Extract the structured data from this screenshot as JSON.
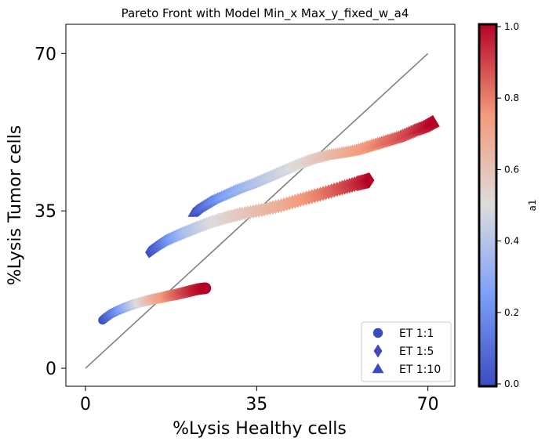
{
  "chart_data": {
    "type": "scatter",
    "title": "Pareto Front with Model Min_x Max_y_fixed_w_a4",
    "xlabel": "%Lysis Healthy cells",
    "ylabel": "%Lysis Tumor cells",
    "xlim": [
      -4,
      75.5
    ],
    "ylim": [
      -4,
      76.5
    ],
    "xticks": [
      0,
      35,
      70
    ],
    "yticks": [
      0,
      35,
      70
    ],
    "reference_line": {
      "x": [
        0,
        70
      ],
      "y": [
        0,
        70
      ],
      "color": "#808080"
    },
    "colorbar": {
      "label": "a1",
      "range": [
        0,
        1
      ],
      "ticks": [
        0.0,
        0.2,
        0.4,
        0.6,
        0.8,
        1.0
      ],
      "tick_labels": [
        "0.0",
        "0.2",
        "0.4",
        "0.6",
        "0.8",
        "1.0"
      ],
      "colormap": "coolwarm"
    },
    "legend": {
      "position": "lower-right"
    },
    "series": [
      {
        "name": "ET 1:1",
        "marker": "circle",
        "points": [
          {
            "x": 3.5,
            "y": 10.7,
            "c": 0.0
          },
          {
            "x": 4.3,
            "y": 11.4,
            "c": 0.06
          },
          {
            "x": 5.2,
            "y": 12.1,
            "c": 0.12
          },
          {
            "x": 6.5,
            "y": 12.8,
            "c": 0.2
          },
          {
            "x": 8.0,
            "y": 13.5,
            "c": 0.3
          },
          {
            "x": 9.5,
            "y": 14.1,
            "c": 0.4
          },
          {
            "x": 11.0,
            "y": 14.6,
            "c": 0.5
          },
          {
            "x": 12.5,
            "y": 15.0,
            "c": 0.58
          },
          {
            "x": 14.0,
            "y": 15.4,
            "c": 0.66
          },
          {
            "x": 15.5,
            "y": 15.7,
            "c": 0.72
          },
          {
            "x": 17.0,
            "y": 16.1,
            "c": 0.78
          },
          {
            "x": 18.5,
            "y": 16.4,
            "c": 0.83
          },
          {
            "x": 20.0,
            "y": 16.8,
            "c": 0.88
          },
          {
            "x": 21.5,
            "y": 17.2,
            "c": 0.93
          },
          {
            "x": 23.0,
            "y": 17.6,
            "c": 0.97
          },
          {
            "x": 24.5,
            "y": 17.8,
            "c": 1.0
          }
        ]
      },
      {
        "name": "ET 1:5",
        "marker": "diamond",
        "points": [
          {
            "x": 13.0,
            "y": 25.8,
            "c": 0.0
          },
          {
            "x": 14.0,
            "y": 26.6,
            "c": 0.06
          },
          {
            "x": 15.2,
            "y": 27.5,
            "c": 0.12
          },
          {
            "x": 16.5,
            "y": 28.4,
            "c": 0.2
          },
          {
            "x": 18.5,
            "y": 29.4,
            "c": 0.3
          },
          {
            "x": 20.5,
            "y": 30.3,
            "c": 0.38
          },
          {
            "x": 23.0,
            "y": 31.4,
            "c": 0.44
          },
          {
            "x": 26.0,
            "y": 32.6,
            "c": 0.5
          },
          {
            "x": 29.0,
            "y": 33.6,
            "c": 0.54
          },
          {
            "x": 32.0,
            "y": 34.4,
            "c": 0.58
          },
          {
            "x": 36.0,
            "y": 35.2,
            "c": 0.63
          },
          {
            "x": 40.0,
            "y": 36.2,
            "c": 0.68
          },
          {
            "x": 44.0,
            "y": 37.5,
            "c": 0.74
          },
          {
            "x": 48.0,
            "y": 38.7,
            "c": 0.8
          },
          {
            "x": 52.0,
            "y": 40.0,
            "c": 0.87
          },
          {
            "x": 55.5,
            "y": 41.1,
            "c": 0.94
          },
          {
            "x": 57.0,
            "y": 41.5,
            "c": 0.97
          },
          {
            "x": 58.0,
            "y": 41.8,
            "c": 1.0
          }
        ]
      },
      {
        "name": "ET 1:10",
        "marker": "triangle",
        "points": [
          {
            "x": 22.0,
            "y": 34.5,
            "c": 0.0
          },
          {
            "x": 23.0,
            "y": 35.4,
            "c": 0.06
          },
          {
            "x": 24.5,
            "y": 36.4,
            "c": 0.12
          },
          {
            "x": 26.0,
            "y": 37.4,
            "c": 0.18
          },
          {
            "x": 28.5,
            "y": 38.6,
            "c": 0.26
          },
          {
            "x": 31.0,
            "y": 39.8,
            "c": 0.32
          },
          {
            "x": 34.0,
            "y": 41.0,
            "c": 0.38
          },
          {
            "x": 37.0,
            "y": 42.4,
            "c": 0.43
          },
          {
            "x": 40.0,
            "y": 43.8,
            "c": 0.47
          },
          {
            "x": 43.0,
            "y": 45.2,
            "c": 0.51
          },
          {
            "x": 46.0,
            "y": 46.4,
            "c": 0.56
          },
          {
            "x": 49.0,
            "y": 47.3,
            "c": 0.61
          },
          {
            "x": 52.0,
            "y": 47.8,
            "c": 0.66
          },
          {
            "x": 55.0,
            "y": 48.4,
            "c": 0.71
          },
          {
            "x": 58.0,
            "y": 49.4,
            "c": 0.76
          },
          {
            "x": 61.0,
            "y": 50.4,
            "c": 0.81
          },
          {
            "x": 64.0,
            "y": 51.4,
            "c": 0.86
          },
          {
            "x": 67.0,
            "y": 52.8,
            "c": 0.91
          },
          {
            "x": 69.0,
            "y": 53.6,
            "c": 0.96
          },
          {
            "x": 71.0,
            "y": 54.8,
            "c": 1.0
          }
        ]
      }
    ]
  }
}
